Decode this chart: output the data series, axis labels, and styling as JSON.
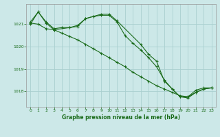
{
  "bg_color": "#cce8e8",
  "grid_color": "#aacfcf",
  "line_color": "#1a6b1a",
  "text_color": "#1a6b1a",
  "xlabel": "Graphe pression niveau de la mer (hPa)",
  "xlim": [
    -0.5,
    23.5
  ],
  "ylim": [
    1017.3,
    1021.9
  ],
  "yticks": [
    1018,
    1019,
    1020,
    1021
  ],
  "xticks": [
    0,
    1,
    2,
    3,
    4,
    5,
    6,
    7,
    8,
    9,
    10,
    11,
    12,
    13,
    14,
    15,
    16,
    17,
    18,
    19,
    20,
    21,
    22,
    23
  ],
  "line1_x": [
    0,
    1,
    2,
    3,
    4,
    5,
    6,
    7,
    8,
    9,
    10,
    11,
    12,
    13,
    14,
    15,
    16,
    17,
    18,
    19,
    20,
    21,
    22,
    23
  ],
  "line1_y": [
    1021.1,
    1021.55,
    1021.1,
    1020.8,
    1020.85,
    1020.85,
    1020.9,
    1021.25,
    1021.35,
    1021.4,
    1021.4,
    1021.1,
    1020.5,
    1020.15,
    1019.85,
    1019.5,
    1019.1,
    1018.5,
    1018.1,
    1017.75,
    1017.75,
    1018.05,
    1018.15,
    1018.15
  ],
  "line2_x": [
    0,
    1,
    2,
    3,
    4,
    5,
    6,
    7,
    8,
    9,
    10,
    11,
    12,
    13,
    14,
    15,
    16,
    17,
    18,
    19,
    20,
    21,
    22,
    23
  ],
  "line2_y": [
    1021.05,
    1021.0,
    1020.8,
    1020.75,
    1020.6,
    1020.45,
    1020.3,
    1020.1,
    1019.9,
    1019.7,
    1019.5,
    1019.3,
    1019.1,
    1018.85,
    1018.65,
    1018.45,
    1018.25,
    1018.1,
    1017.95,
    1017.8,
    1017.75,
    1017.95,
    1018.1,
    1018.15
  ],
  "line3_x": [
    0,
    1,
    2,
    3,
    5,
    6,
    7,
    8,
    9,
    10,
    11,
    14,
    15,
    16,
    17,
    18,
    19,
    20,
    21,
    22,
    23
  ],
  "line3_y": [
    1021.0,
    1021.55,
    1021.05,
    1020.75,
    1020.85,
    1020.95,
    1021.25,
    1021.35,
    1021.45,
    1021.45,
    1021.15,
    1020.1,
    1019.65,
    1019.35,
    1018.45,
    1018.1,
    1017.75,
    1017.7,
    1017.95,
    1018.1,
    1018.15
  ]
}
